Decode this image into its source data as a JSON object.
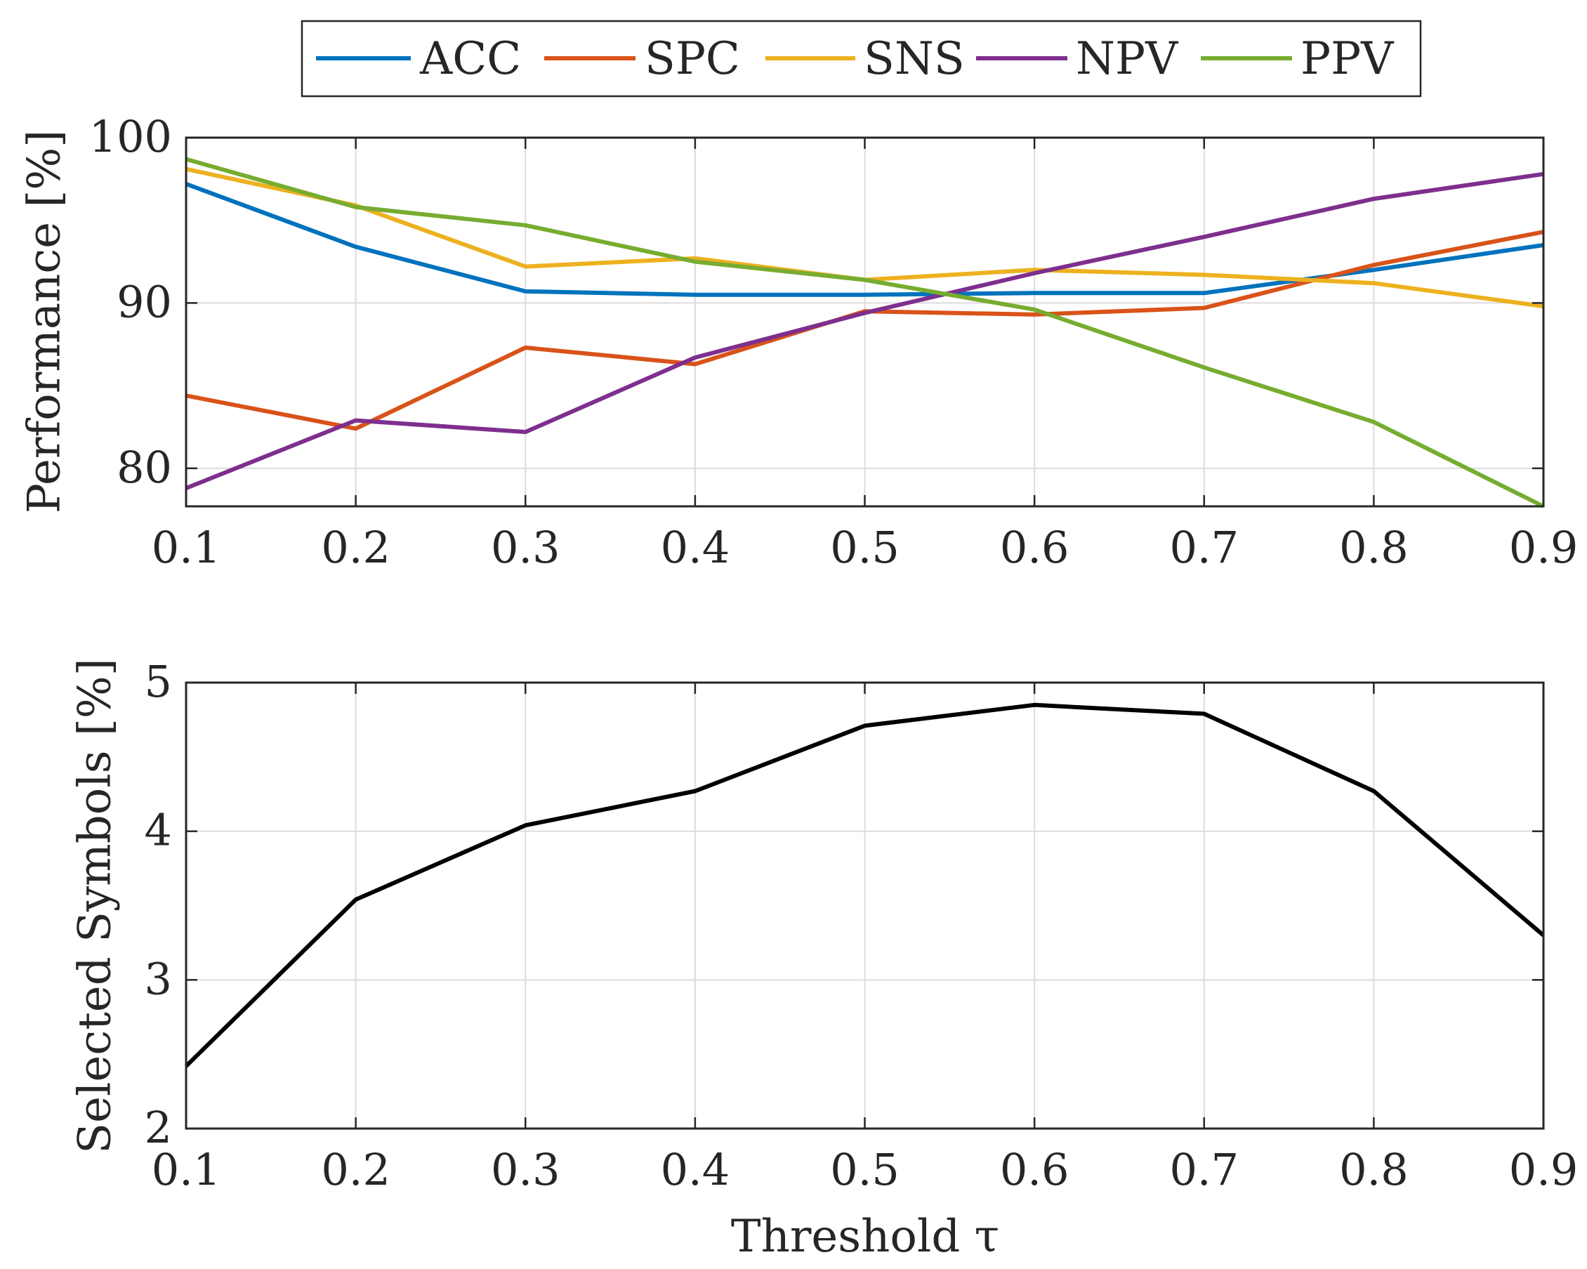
{
  "chart_data": [
    {
      "type": "line",
      "x": [
        0.1,
        0.2,
        0.3,
        0.4,
        0.5,
        0.6,
        0.7,
        0.8,
        0.9
      ],
      "xlim": [
        0.1,
        0.9
      ],
      "ylim": [
        77.7,
        100
      ],
      "xticks": [
        "0.1",
        "0.2",
        "0.3",
        "0.4",
        "0.5",
        "0.6",
        "0.7",
        "0.8",
        "0.9"
      ],
      "yticks": [
        {
          "value": 80,
          "label": "80"
        },
        {
          "value": 90,
          "label": "90"
        },
        {
          "value": 100,
          "label": "100"
        }
      ],
      "ylabel": "Performance [%]",
      "xlabel": "",
      "grid": true,
      "legend_position": "top",
      "series": [
        {
          "name": "ACC",
          "color": "#0072BD",
          "values": [
            97.2,
            93.4,
            90.7,
            90.5,
            90.5,
            90.6,
            90.6,
            92.0,
            93.5
          ]
        },
        {
          "name": "SPC",
          "color": "#D95319",
          "values": [
            84.4,
            82.4,
            87.3,
            86.3,
            89.5,
            89.3,
            89.7,
            92.3,
            94.3
          ]
        },
        {
          "name": "SNS",
          "color": "#EDB120",
          "values": [
            98.1,
            95.9,
            92.2,
            92.7,
            91.4,
            92.0,
            91.7,
            91.2,
            89.8
          ]
        },
        {
          "name": "NPV",
          "color": "#7E2F8E",
          "values": [
            78.8,
            82.9,
            82.2,
            86.7,
            89.4,
            91.8,
            94.0,
            96.3,
            97.8
          ]
        },
        {
          "name": "PPV",
          "color": "#77AC30",
          "values": [
            98.7,
            95.8,
            94.7,
            92.5,
            91.4,
            89.6,
            86.1,
            82.8,
            77.7
          ]
        }
      ]
    },
    {
      "type": "line",
      "x": [
        0.1,
        0.2,
        0.3,
        0.4,
        0.5,
        0.6,
        0.7,
        0.8,
        0.9
      ],
      "xlim": [
        0.1,
        0.9
      ],
      "ylim": [
        2,
        5
      ],
      "xticks": [
        "0.1",
        "0.2",
        "0.3",
        "0.4",
        "0.5",
        "0.6",
        "0.7",
        "0.8",
        "0.9"
      ],
      "yticks": [
        {
          "value": 2,
          "label": "2"
        },
        {
          "value": 3,
          "label": "3"
        },
        {
          "value": 4,
          "label": "4"
        },
        {
          "value": 5,
          "label": "5"
        }
      ],
      "ylabel": "Selected Symbols [%]",
      "xlabel": "Threshold τ",
      "grid": true,
      "series": [
        {
          "name": "Selected Symbols",
          "color": "#000000",
          "values": [
            2.42,
            3.54,
            4.04,
            4.27,
            4.71,
            4.85,
            4.79,
            4.27,
            3.3
          ]
        }
      ]
    }
  ]
}
